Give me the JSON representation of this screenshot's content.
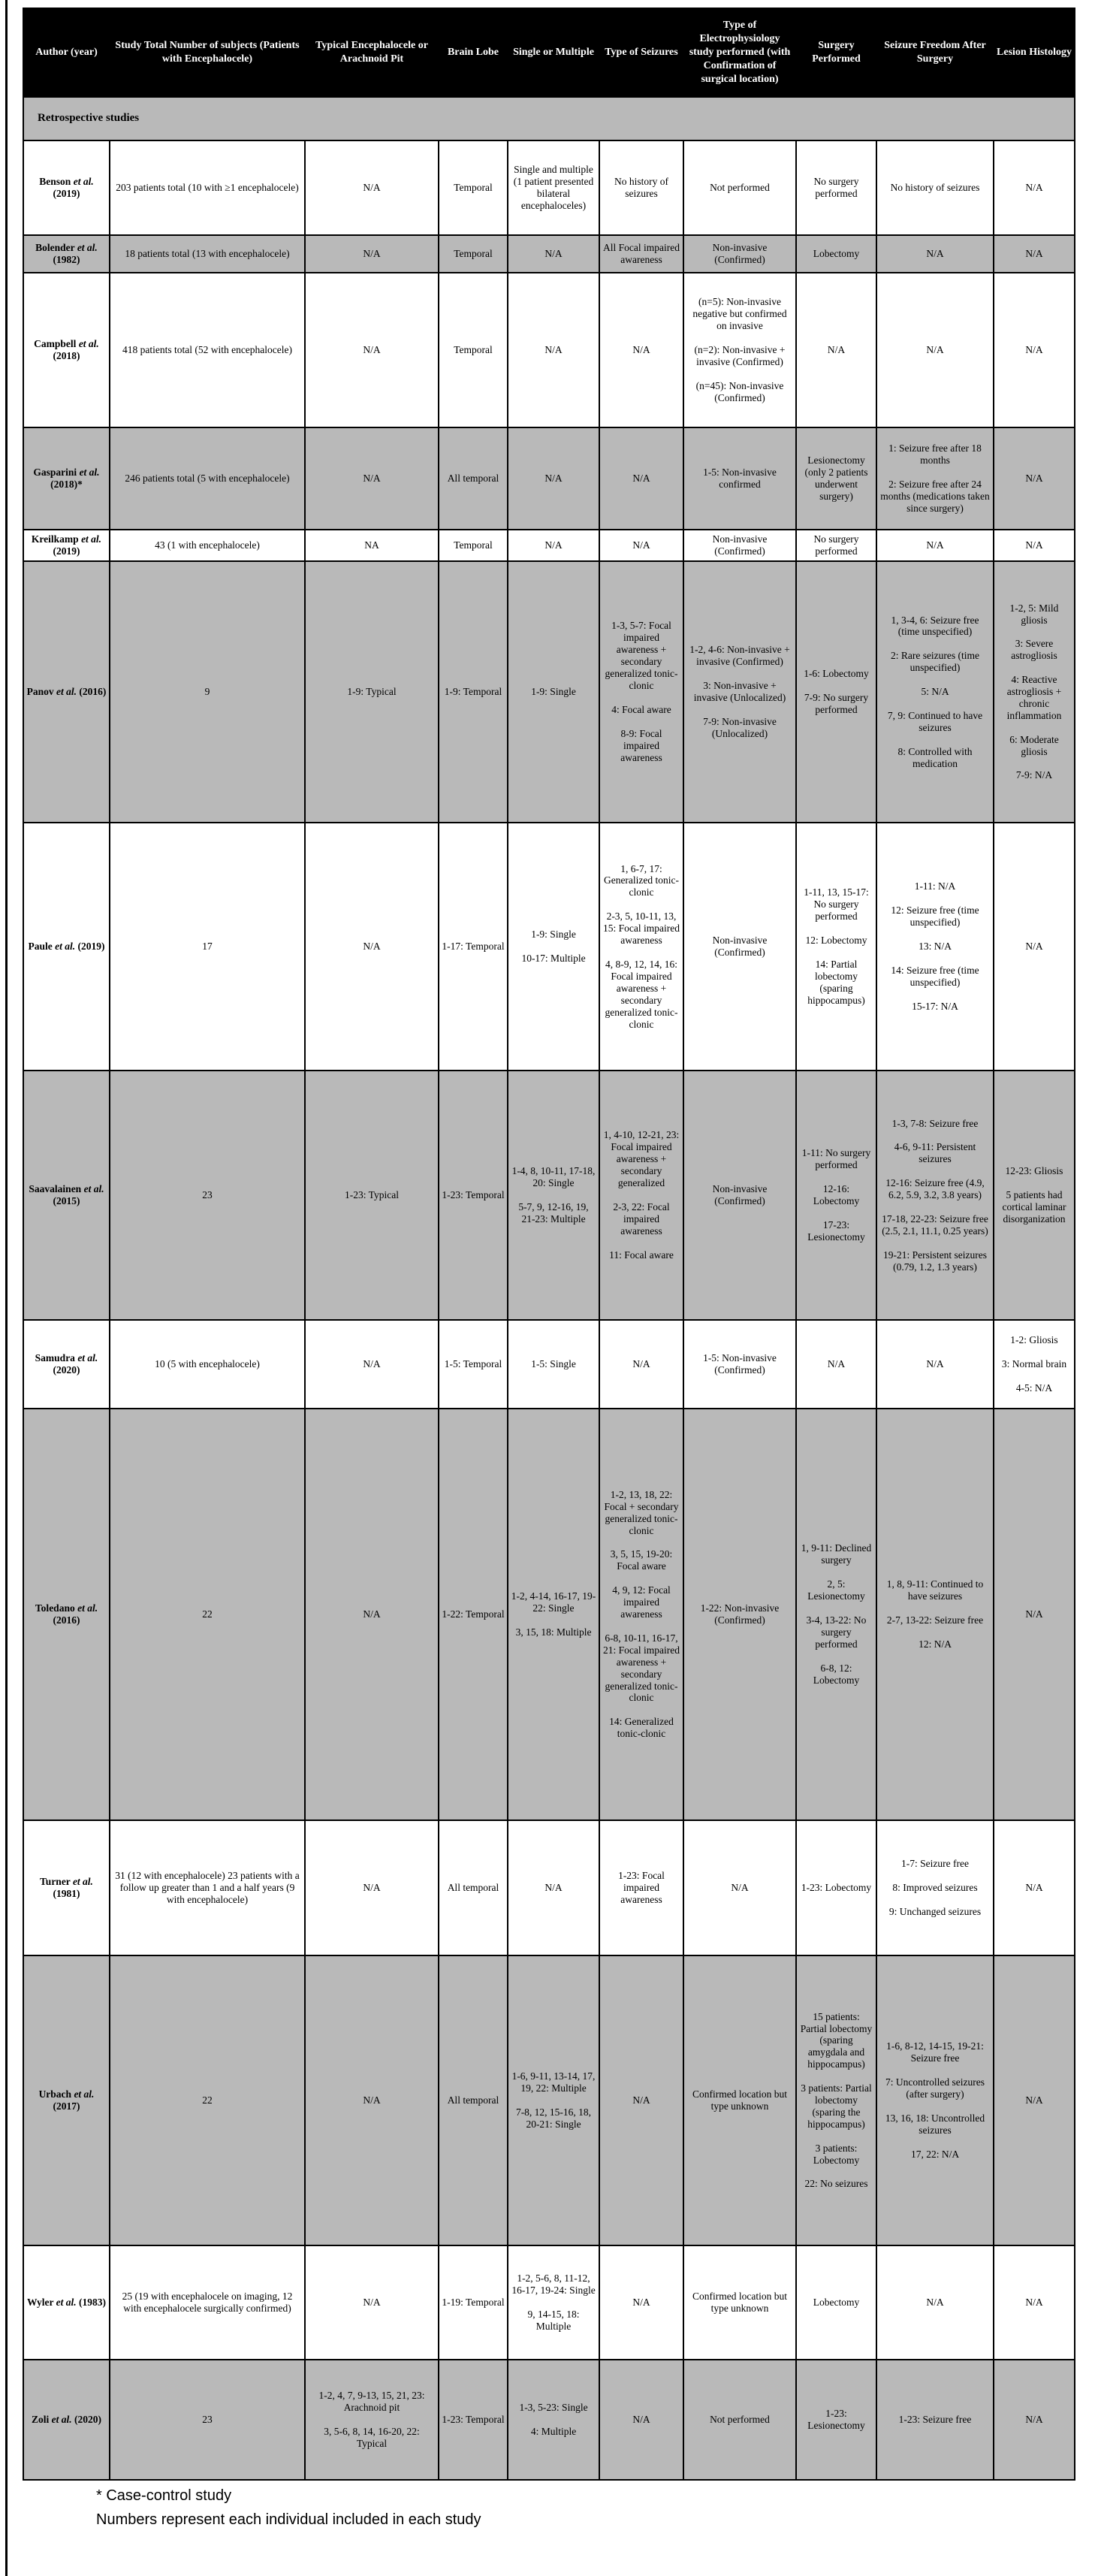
{
  "colors": {
    "header_bg": "#000000",
    "header_text": "#ffffff",
    "row_gray": "#b9b9b9",
    "border": "#000000"
  },
  "footnotes": [
    "* Case-control study",
    "Numbers represent each individual included in each study"
  ],
  "table": {
    "section_label": "Retrospective studies",
    "columns": [
      "Author (year)",
      "Study Total Number of subjects (Patients with Encephalocele)",
      "Typical Encephalocele or Arachnoid Pit",
      "Brain Lobe",
      "Single or Multiple",
      "Type of Seizures",
      "Type of Electrophysiology study performed (with Confirmation of surgical location)",
      "Surgery Performed",
      "Seizure Freedom After Surgery",
      "Lesion Histology"
    ],
    "rows": [
      {
        "shade": "white",
        "author": {
          "name": "Benson",
          "etal": "et al.",
          "year": "(2019)"
        },
        "cells": [
          "203 patients total (10 with ≥1 encephalocele)",
          "N/A",
          "Temporal",
          "Single and multiple (1 patient presented bilateral encephaloceles)",
          "No history of seizures",
          "Not performed",
          "No surgery performed",
          "No history of seizures",
          "N/A"
        ]
      },
      {
        "shade": "gray",
        "author": {
          "name": "Bolender",
          "etal": "et al.",
          "year": "(1982)"
        },
        "cells": [
          "18 patients total (13 with encephalocele)",
          "N/A",
          "Temporal",
          "N/A",
          "All Focal impaired awareness",
          "Non-invasive (Confirmed)",
          "Lobectomy",
          "N/A",
          "N/A"
        ]
      },
      {
        "shade": "white",
        "author": {
          "name": "Campbell",
          "etal": "et al.",
          "year": "(2018)"
        },
        "cells": [
          "418 patients total (52 with encephalocele)",
          "N/A",
          "Temporal",
          "N/A",
          "N/A",
          "(n=5): Non-invasive negative but confirmed on invasive\n\n(n=2): Non-invasive + invasive (Confirmed)\n\n(n=45): Non-invasive (Confirmed)",
          "N/A",
          "N/A",
          "N/A"
        ]
      },
      {
        "shade": "gray",
        "author": {
          "name": "Gasparini",
          "etal": "et al.",
          "year": "(2018)*"
        },
        "cells": [
          "246 patients total (5 with encephalocele)",
          "N/A",
          "All temporal",
          "N/A",
          "N/A",
          "1-5: Non-invasive confirmed",
          "Lesionectomy (only 2 patients underwent surgery)",
          "1: Seizure free after 18 months\n\n2: Seizure free after 24 months (medications taken since surgery)",
          "N/A"
        ]
      },
      {
        "shade": "white",
        "author": {
          "name": "Kreilkamp",
          "etal": "et al.",
          "year": "(2019)"
        },
        "cells": [
          "43 (1 with encephalocele)",
          "NA",
          "Temporal",
          "N/A",
          "N/A",
          "Non-invasive (Confirmed)",
          "No surgery performed",
          "N/A",
          "N/A"
        ]
      },
      {
        "shade": "gray",
        "author": {
          "name": "Panov",
          "etal": "et al.",
          "year": "(2016)"
        },
        "cells": [
          "9",
          "1-9: Typical",
          "1-9: Temporal",
          "1-9: Single",
          "1-3, 5-7: Focal impaired awareness + secondary generalized tonic-clonic\n\n4: Focal aware\n\n8-9: Focal impaired awareness",
          "1-2, 4-6: Non-invasive + invasive (Confirmed)\n\n3: Non-invasive + invasive (Unlocalized)\n\n7-9: Non-invasive (Unlocalized)",
          "1-6: Lobectomy\n\n7-9: No surgery performed",
          "1, 3-4, 6: Seizure free (time unspecified)\n\n2: Rare seizures (time unspecified)\n\n5: N/A\n\n7, 9: Continued to have seizures\n\n8: Controlled with medication",
          "1-2, 5: Mild gliosis\n\n3: Severe astrogliosis\n\n4: Reactive astrogliosis + chronic inflammation\n\n6: Moderate gliosis\n\n7-9: N/A"
        ]
      },
      {
        "shade": "white",
        "author": {
          "name": "Paule",
          "etal": "et al.",
          "year": "(2019)"
        },
        "cells": [
          "17",
          "N/A",
          "1-17: Temporal",
          "1-9: Single\n\n10-17: Multiple",
          "1, 6-7, 17: Generalized tonic-clonic\n\n2-3, 5, 10-11, 13, 15: Focal impaired awareness\n\n4, 8-9, 12, 14, 16: Focal impaired awareness + secondary generalized tonic-clonic",
          "Non-invasive (Confirmed)",
          "1-11, 13, 15-17: No surgery performed\n\n12: Lobectomy\n\n14: Partial lobectomy (sparing hippocampus)",
          "1-11: N/A\n\n12: Seizure free (time unspecified)\n\n13: N/A\n\n14: Seizure free (time unspecified)\n\n15-17: N/A",
          "N/A"
        ]
      },
      {
        "shade": "gray",
        "author": {
          "name": "Saavalainen",
          "etal": "et al.",
          "year": "(2015)"
        },
        "cells": [
          "23",
          "1-23: Typical",
          "1-23: Temporal",
          "1-4, 8, 10-11, 17-18, 20: Single\n\n5-7, 9, 12-16, 19, 21-23: Multiple",
          "1, 4-10, 12-21, 23: Focal impaired awareness + secondary generalized\n\n2-3, 22: Focal impaired awareness\n\n11: Focal aware",
          "Non-invasive (Confirmed)",
          "1-11: No surgery performed\n\n12-16: Lobectomy\n\n17-23: Lesionectomy",
          "1-3, 7-8: Seizure free\n\n4-6, 9-11: Persistent seizures\n\n12-16: Seizure free (4.9, 6.2, 5.9, 3.2, 3.8 years)\n\n17-18, 22-23: Seizure free (2.5, 2.1, 11.1, 0.25 years)\n\n19-21: Persistent seizures (0.79, 1.2, 1.3 years)",
          "12-23: Gliosis\n\n5 patients had cortical laminar disorganization"
        ]
      },
      {
        "shade": "white",
        "author": {
          "name": "Samudra",
          "etal": "et al.",
          "year": "(2020)"
        },
        "cells": [
          "10 (5 with encephalocele)",
          "N/A",
          "1-5: Temporal",
          "1-5: Single",
          "N/A",
          "1-5: Non-invasive (Confirmed)",
          "N/A",
          "N/A",
          "1-2: Gliosis\n\n3: Normal brain\n\n4-5: N/A"
        ]
      },
      {
        "shade": "gray",
        "author": {
          "name": "Toledano",
          "etal": "et al.",
          "year": "(2016)"
        },
        "cells": [
          "22",
          "N/A",
          "1-22: Temporal",
          "1-2, 4-14, 16-17, 19-22: Single\n\n3, 15, 18: Multiple",
          "1-2, 13, 18, 22: Focal + secondary generalized tonic-clonic\n\n3, 5, 15, 19-20: Focal aware\n\n4, 9, 12: Focal impaired awareness\n\n6-8, 10-11, 16-17, 21: Focal impaired awareness + secondary generalized tonic-clonic\n\n14: Generalized tonic-clonic",
          "1-22: Non-invasive (Confirmed)",
          "1, 9-11: Declined surgery\n\n2, 5: Lesionectomy\n\n3-4, 13-22: No surgery performed\n\n6-8, 12: Lobectomy",
          "1, 8, 9-11: Continued to have seizures\n\n2-7, 13-22: Seizure free\n\n12: N/A",
          "N/A"
        ]
      },
      {
        "shade": "white",
        "author": {
          "name": "Turner",
          "etal": "et al.",
          "year": "(1981)"
        },
        "cells": [
          "31 (12 with encephalocele) 23 patients with a follow up greater than 1 and a half years (9 with encephalocele)",
          "N/A",
          "All temporal",
          "N/A",
          "1-23: Focal impaired awareness",
          "N/A",
          "1-23: Lobectomy",
          "1-7: Seizure free\n\n8: Improved seizures\n\n9: Unchanged seizures",
          "N/A"
        ]
      },
      {
        "shade": "gray",
        "author": {
          "name": "Urbach",
          "etal": "et al.",
          "year": "(2017)"
        },
        "cells": [
          "22",
          "N/A",
          "All temporal",
          "1-6, 9-11, 13-14, 17, 19, 22: Multiple\n\n7-8, 12, 15-16, 18, 20-21: Single",
          "N/A",
          "Confirmed location but type unknown",
          "15 patients: Partial lobectomy (sparing amygdala and hippocampus)\n\n3 patients: Partial lobectomy (sparing the hippocampus)\n\n3 patients: Lobectomy\n\n22: No seizures",
          "1-6, 8-12, 14-15, 19-21: Seizure free\n\n7: Uncontrolled seizures (after surgery)\n\n13, 16, 18: Uncontrolled seizures\n\n17, 22: N/A",
          "N/A"
        ]
      },
      {
        "shade": "white",
        "author": {
          "name": "Wyler",
          "etal": "et al.",
          "year": "(1983)"
        },
        "cells": [
          "25 (19 with encephalocele on imaging, 12 with encephalocele surgically confirmed)",
          "N/A",
          "1-19: Temporal",
          "1-2, 5-6, 8, 11-12, 16-17, 19-24: Single\n\n9, 14-15, 18: Multiple",
          "N/A",
          "Confirmed location but type unknown",
          "Lobectomy",
          "N/A",
          "N/A"
        ]
      },
      {
        "shade": "gray",
        "author": {
          "name": "Zoli",
          "etal": "et al.",
          "year": "(2020)"
        },
        "cells": [
          "23",
          "1-2, 4, 7, 9-13, 15, 21, 23: Arachnoid pit\n\n3, 5-6, 8, 14, 16-20, 22: Typical",
          "1-23: Temporal",
          "1-3, 5-23: Single\n\n4: Multiple",
          "N/A",
          "Not performed",
          "1-23: Lesionectomy",
          "1-23: Seizure free",
          "N/A"
        ]
      }
    ]
  }
}
